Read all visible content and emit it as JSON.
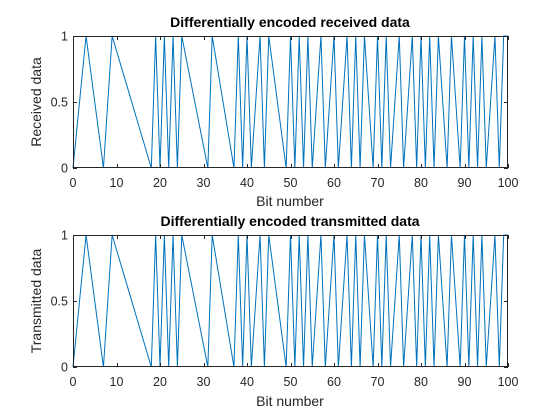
{
  "chart_data": [
    {
      "type": "line",
      "title": "Differentially encoded received data",
      "xlabel": "Bit number",
      "ylabel": "Received data",
      "xlim": [
        0,
        100
      ],
      "ylim": [
        0,
        1
      ],
      "xticks": [
        0,
        10,
        20,
        30,
        40,
        50,
        60,
        70,
        80,
        90,
        100
      ],
      "yticks": [
        0,
        0.5,
        1
      ],
      "xtick_labels": [
        "0",
        "10",
        "20",
        "30",
        "40",
        "50",
        "60",
        "70",
        "80",
        "90",
        "100"
      ],
      "ytick_labels": [
        "0",
        "0.5",
        "1"
      ],
      "grid": false,
      "line_color": "#0072BD",
      "series": [
        {
          "x": [
            0,
            3,
            7,
            9,
            18,
            19,
            20,
            21,
            22,
            23,
            24,
            25,
            31,
            32,
            37,
            38,
            39,
            40,
            41,
            43,
            44,
            45,
            49,
            50,
            51,
            52,
            53,
            54,
            55,
            57,
            58,
            60,
            61,
            63,
            64,
            65,
            66,
            67,
            69,
            70,
            71,
            72,
            73,
            75,
            76,
            78,
            79,
            80,
            81,
            82,
            83,
            84,
            86,
            87,
            89,
            90,
            91,
            92,
            93,
            94,
            95,
            97,
            98,
            99,
            100
          ],
          "values": [
            0,
            1,
            0,
            1,
            0,
            1,
            0,
            1,
            0,
            1,
            0,
            1,
            0,
            1,
            0,
            1,
            0,
            1,
            0,
            1,
            0,
            1,
            0,
            1,
            0,
            1,
            0,
            1,
            0,
            1,
            0,
            1,
            0,
            1,
            0,
            1,
            0,
            1,
            0,
            1,
            0,
            1,
            0,
            1,
            0,
            1,
            0,
            1,
            0,
            1,
            0,
            1,
            0,
            1,
            0,
            1,
            0,
            1,
            0,
            1,
            0,
            1,
            0,
            1,
            1
          ]
        }
      ]
    },
    {
      "type": "line",
      "title": "Differentially encoded transmitted data",
      "xlabel": "Bit number",
      "ylabel": "Transmitted data",
      "xlim": [
        0,
        100
      ],
      "ylim": [
        0,
        1
      ],
      "xticks": [
        0,
        10,
        20,
        30,
        40,
        50,
        60,
        70,
        80,
        90,
        100
      ],
      "yticks": [
        0,
        0.5,
        1
      ],
      "xtick_labels": [
        "0",
        "10",
        "20",
        "30",
        "40",
        "50",
        "60",
        "70",
        "80",
        "90",
        "100"
      ],
      "ytick_labels": [
        "0",
        "0.5",
        "1"
      ],
      "grid": false,
      "line_color": "#0072BD",
      "series": [
        {
          "x": [
            0,
            3,
            7,
            9,
            18,
            19,
            20,
            21,
            22,
            23,
            24,
            25,
            31,
            32,
            37,
            38,
            39,
            40,
            41,
            43,
            44,
            45,
            49,
            50,
            51,
            52,
            53,
            54,
            55,
            57,
            58,
            60,
            61,
            63,
            64,
            65,
            66,
            67,
            69,
            70,
            71,
            72,
            73,
            75,
            76,
            78,
            79,
            80,
            81,
            82,
            83,
            84,
            86,
            87,
            89,
            90,
            91,
            92,
            93,
            94,
            95,
            97,
            98,
            99,
            100
          ],
          "values": [
            0,
            1,
            0,
            1,
            0,
            1,
            0,
            1,
            0,
            1,
            0,
            1,
            0,
            1,
            0,
            1,
            0,
            1,
            0,
            1,
            0,
            1,
            0,
            1,
            0,
            1,
            0,
            1,
            0,
            1,
            0,
            1,
            0,
            1,
            0,
            1,
            0,
            1,
            0,
            1,
            0,
            1,
            0,
            1,
            0,
            1,
            0,
            1,
            0,
            1,
            0,
            1,
            0,
            1,
            0,
            1,
            0,
            1,
            0,
            1,
            0,
            1,
            0,
            1,
            1
          ]
        }
      ]
    }
  ]
}
